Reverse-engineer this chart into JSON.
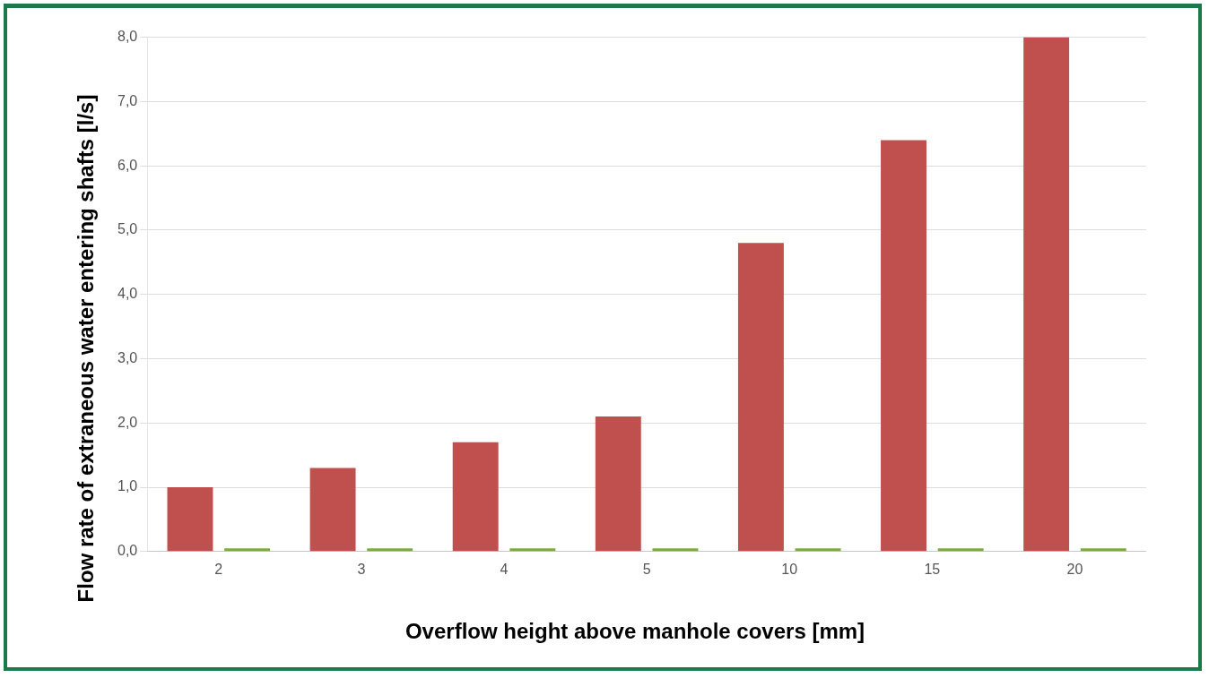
{
  "chart_data": {
    "type": "bar",
    "xlabel": "Overflow height above manhole covers [mm]",
    "ylabel": "Flow rate of extraneous water entering shafts [l/s]",
    "categories": [
      "2",
      "3",
      "4",
      "5",
      "10",
      "15",
      "20"
    ],
    "series": [
      {
        "color": "#c0504d",
        "values": [
          1.0,
          1.3,
          1.7,
          2.1,
          4.8,
          6.4,
          8.0
        ]
      },
      {
        "color": "#7aab3e",
        "values": [
          0.05,
          0.05,
          0.05,
          0.05,
          0.05,
          0.05,
          0.05
        ]
      }
    ],
    "ylim": [
      0,
      8
    ],
    "yticks": [
      {
        "value": 0,
        "label": "0,0"
      },
      {
        "value": 1,
        "label": "1,0"
      },
      {
        "value": 2,
        "label": "2,0"
      },
      {
        "value": 3,
        "label": "3,0"
      },
      {
        "value": 4,
        "label": "4,0"
      },
      {
        "value": 5,
        "label": "5,0"
      },
      {
        "value": 6,
        "label": "6,0"
      },
      {
        "value": 7,
        "label": "7,0"
      },
      {
        "value": 8,
        "label": "8,0"
      }
    ],
    "grid": "y",
    "legend": false
  }
}
